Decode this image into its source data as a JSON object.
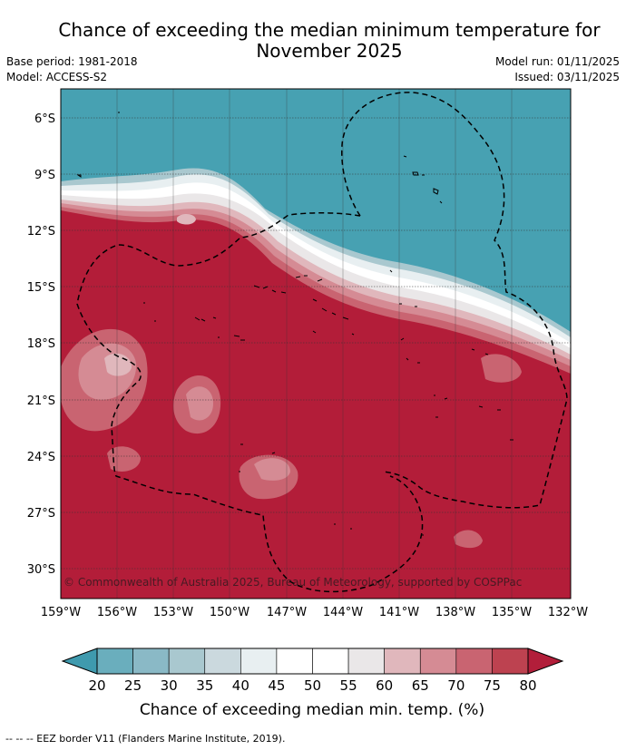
{
  "title_line1": "Chance of exceeding the median minimum temperature for",
  "title_line2": "November 2025",
  "base_period": "Base period: 1981-2018",
  "model": "Model: ACCESS-S2",
  "model_run": "Model run: 01/11/2025",
  "issued": "Issued: 03/11/2025",
  "copyright": "© Commonwealth of Australia 2025, Bureau of Meteorology, supported by COSPPac",
  "lat_labels": [
    "6°S",
    "9°S",
    "12°S",
    "15°S",
    "18°S",
    "21°S",
    "24°S",
    "27°S",
    "30°S"
  ],
  "lon_labels": [
    "159°W",
    "156°W",
    "153°W",
    "150°W",
    "147°W",
    "144°W",
    "141°W",
    "138°W",
    "135°W",
    "132°W"
  ],
  "colorbar": {
    "ticks": [
      "20",
      "25",
      "30",
      "35",
      "40",
      "45",
      "50",
      "55",
      "60",
      "65",
      "70",
      "75",
      "80"
    ],
    "colors": [
      "#3f9aae",
      "#6aaebd",
      "#8ab9c6",
      "#a9c8cf",
      "#cbd9de",
      "#e8eff1",
      "#ffffff",
      "#ffffff",
      "#eae7e8",
      "#e0b7bc",
      "#d58b94",
      "#c96471",
      "#bd4250",
      "#b21e3a"
    ],
    "title": "Chance of exceeding median min. temp. (%)"
  },
  "footnote": "-- -- -- EEZ border V11 (Flanders Marine Institute, 2019).",
  "colors": {
    "cool": "#47a1b2",
    "warm": "#b31d39"
  }
}
